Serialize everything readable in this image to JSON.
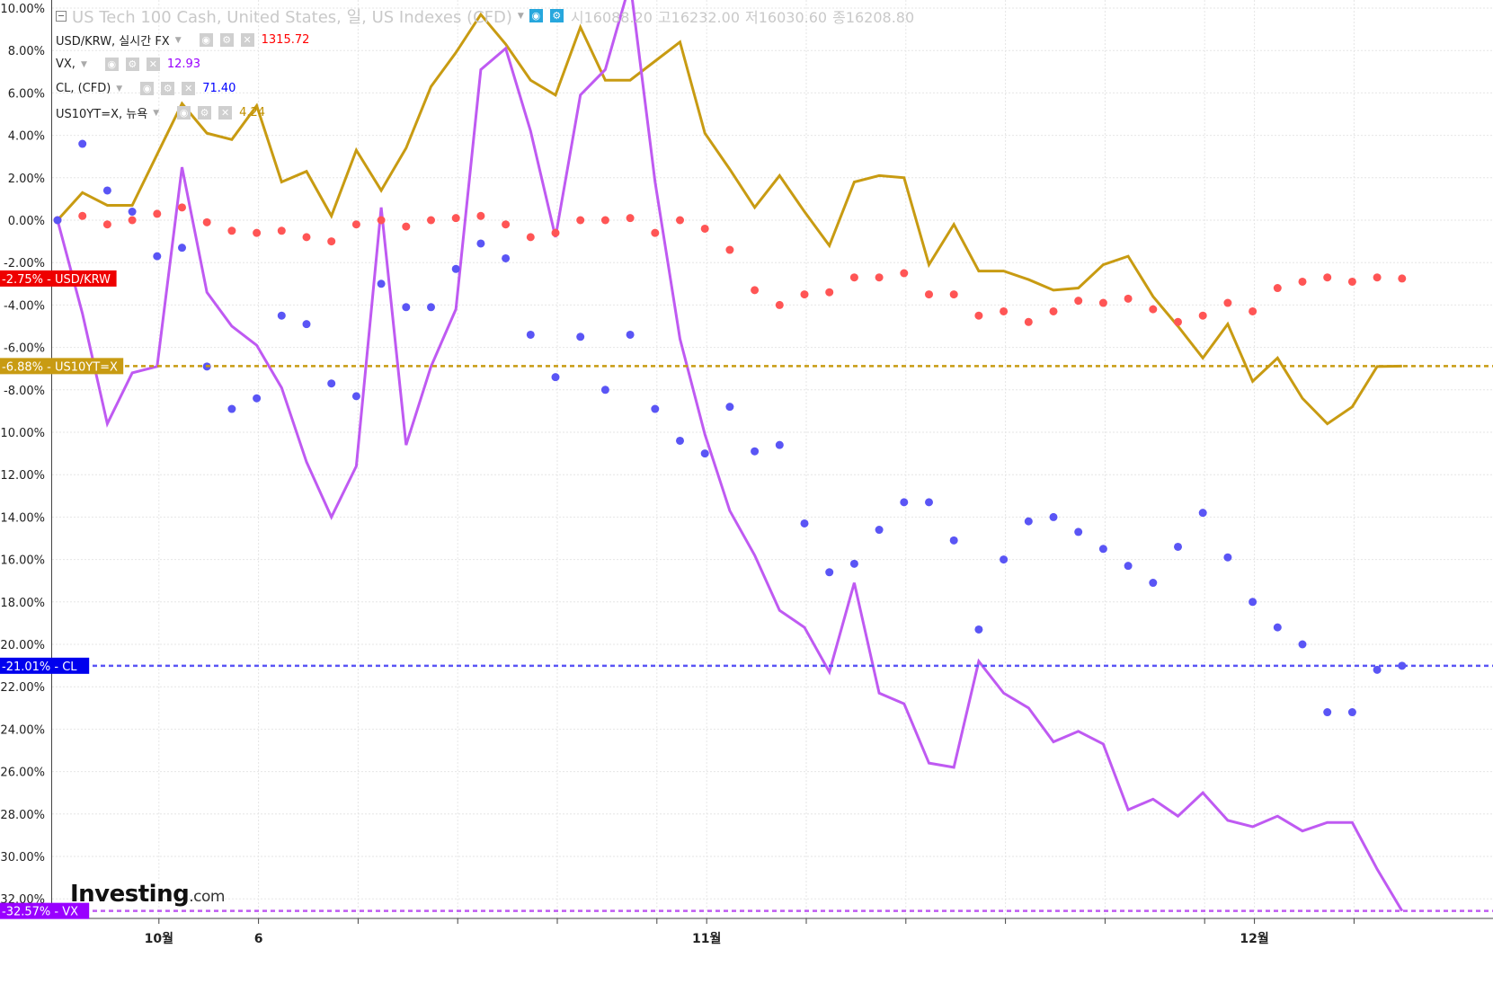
{
  "header": {
    "main_symbol": "US Tech 100 Cash, United States, 일, US Indexes (CFD)",
    "ohlc": [
      {
        "label": "시",
        "value": "16088.20"
      },
      {
        "label": "고",
        "value": "16232.00"
      },
      {
        "label": "저",
        "value": "16030.60"
      },
      {
        "label": "종",
        "value": "16208.80"
      }
    ]
  },
  "legend": [
    {
      "id": "usdkrw",
      "label": "USD/KRW, 실시간 FX",
      "value": "1315.72",
      "color": "#ff0000"
    },
    {
      "id": "vx",
      "label": "VX,",
      "value": "12.93",
      "color": "#9900ff"
    },
    {
      "id": "cl",
      "label": "CL, (CFD)",
      "value": "71.40",
      "color": "#0000ff"
    },
    {
      "id": "us10yt",
      "label": "US10YT=X, 뉴욕",
      "value": "4.24",
      "color": "#c09000"
    }
  ],
  "logo": {
    "brand": "Investing",
    "suffix": ".com"
  },
  "chart_data": {
    "type": "line",
    "y_axis": {
      "min": -32.8,
      "max": 10.5,
      "ticks": [
        "10.00%",
        "8.00%",
        "6.00%",
        "4.00%",
        "2.00%",
        "0.00%",
        "-2.00%",
        "-4.00%",
        "-6.00%",
        "-8.00%",
        "-10.00%",
        "-12.00%",
        "-14.00%",
        "-16.00%",
        "-18.00%",
        "-20.00%",
        "-22.00%",
        "-24.00%",
        "-26.00%",
        "-28.00%",
        "-30.00%",
        "-32.00%"
      ],
      "tick_values": [
        10,
        8,
        6,
        4,
        2,
        0,
        -2,
        -4,
        -6,
        -8,
        -10,
        -12,
        -14,
        -16,
        -18,
        -20,
        -22,
        -24,
        -26,
        -28,
        -30,
        -32
      ]
    },
    "x_axis": {
      "labels": [
        {
          "text": "10월",
          "index": 4
        },
        {
          "text": "6",
          "index": 8
        },
        {
          "text": "11월",
          "index": 26
        },
        {
          "text": "12월",
          "index": 48
        }
      ],
      "grid_indices": [
        4,
        8,
        12,
        16,
        20,
        24,
        26,
        30,
        34,
        38,
        42,
        46,
        48,
        52
      ],
      "n": 55,
      "grid": true
    },
    "series": [
      {
        "name": "US10YT=X",
        "style": "line",
        "color": "#c89b12",
        "end_label": "-6.88%",
        "end_value": -6.88,
        "values": [
          0,
          1.3,
          0.7,
          0.7,
          3.1,
          5.5,
          4.1,
          3.8,
          5.4,
          1.8,
          2.3,
          0.2,
          3.3,
          1.4,
          3.4,
          6.3,
          7.9,
          9.7,
          8.3,
          6.6,
          5.9,
          9.1,
          6.6,
          6.6,
          7.5,
          8.4,
          4.1,
          2.4,
          0.6,
          2.1,
          0.4,
          -1.2,
          1.8,
          2.1,
          2.0,
          -2.1,
          -0.2,
          -2.4,
          -2.4,
          -2.8,
          -3.3,
          -3.2,
          -2.1,
          -1.7,
          -3.6,
          -5.0,
          -6.5,
          -4.9,
          -7.6,
          -6.5,
          -8.4,
          -9.6,
          -8.8,
          -6.9,
          -6.88
        ]
      },
      {
        "name": "VX",
        "style": "line",
        "color": "#bf5af2",
        "end_label": "-32.57%",
        "end_value": -32.57,
        "values": [
          0,
          -4.4,
          -9.6,
          -7.2,
          -6.9,
          2.5,
          -3.4,
          -5.0,
          -5.9,
          -7.9,
          -11.4,
          -14.0,
          -11.6,
          0.6,
          -10.6,
          -6.9,
          -4.2,
          7.1,
          8.1,
          4.2,
          -0.8,
          5.9,
          7.1,
          11.2,
          1.8,
          -5.6,
          -10.1,
          -13.7,
          -15.8,
          -18.4,
          -19.2,
          -21.3,
          -17.1,
          -22.3,
          -22.8,
          -25.6,
          -25.8,
          -20.8,
          -22.3,
          -23.0,
          -24.6,
          -24.1,
          -24.7,
          -27.8,
          -27.3,
          -28.1,
          -27.0,
          -28.3,
          -28.6,
          -28.1,
          -28.8,
          -28.4,
          -28.4,
          -30.6,
          -32.57
        ]
      },
      {
        "name": "USD/KRW",
        "style": "dots",
        "color": "#ff5555",
        "end_label": "-2.75%",
        "end_value": -2.75,
        "values": [
          0,
          0.2,
          -0.2,
          0.0,
          0.3,
          0.6,
          -0.1,
          -0.5,
          -0.6,
          -0.5,
          -0.8,
          -1.0,
          -0.2,
          0.0,
          -0.3,
          0.0,
          0.1,
          0.2,
          -0.2,
          -0.8,
          -0.6,
          0.0,
          0.0,
          0.1,
          -0.6,
          0.0,
          -0.4,
          -1.4,
          -3.3,
          -4.0,
          -3.5,
          -3.4,
          -2.7,
          -2.7,
          -2.5,
          -3.5,
          -3.5,
          -4.5,
          -4.3,
          -4.8,
          -4.3,
          -3.8,
          -3.9,
          -3.7,
          -4.2,
          -4.8,
          -4.5,
          -3.9,
          -4.3,
          -3.2,
          -2.9,
          -2.7,
          -2.9,
          -2.7,
          -2.75
        ]
      },
      {
        "name": "CL",
        "style": "dots",
        "color": "#5a55f5",
        "end_label": "-21.01%",
        "end_value": -21.01,
        "values": [
          0,
          3.6,
          1.4,
          0.4,
          -1.7,
          -1.3,
          -6.9,
          -8.9,
          -8.4,
          -4.5,
          -4.9,
          -7.7,
          -8.3,
          -3.0,
          -4.1,
          -4.1,
          -2.3,
          -1.1,
          -1.8,
          -5.4,
          -7.4,
          -5.5,
          -8.0,
          -5.4,
          -8.9,
          -10.4,
          -11.0,
          -8.8,
          -10.9,
          -10.6,
          -14.3,
          -16.6,
          -16.2,
          -14.6,
          -13.3,
          -13.3,
          -15.1,
          -19.3,
          -16.0,
          -14.2,
          -14.0,
          -14.7,
          -15.5,
          -16.3,
          -17.1,
          -15.4,
          -13.8,
          -15.9,
          -18.0,
          -19.2,
          -20.0,
          -23.2,
          -23.2,
          -21.2,
          -21.01
        ]
      }
    ],
    "reference_lines": [
      {
        "series": "US10YT=X",
        "value": -6.88,
        "label": "-6.88%",
        "name": "US10YT=X",
        "color": "#c89b12",
        "label_bg": "#c89b12"
      },
      {
        "series": "CL",
        "value": -21.01,
        "label": "-21.01%",
        "name": "CL",
        "color": "#5a55f5",
        "label_bg": "#0000ee"
      },
      {
        "series": "VX",
        "value": -32.57,
        "label": "-32.57%",
        "name": "VX",
        "color": "#bf5af2",
        "label_bg": "#9900ff"
      }
    ],
    "price_tags": [
      {
        "value": -2.75,
        "label": "-2.75%",
        "name": "USD/KRW",
        "label_bg": "#ee0000"
      }
    ]
  }
}
